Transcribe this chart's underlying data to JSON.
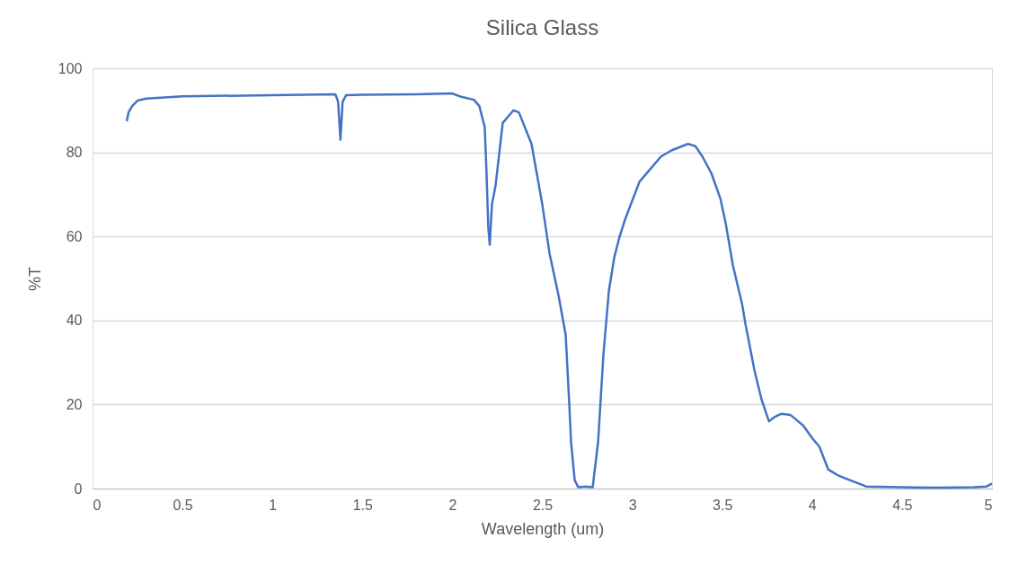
{
  "chart_data": {
    "type": "line",
    "title": "Silica Glass",
    "xlabel": "Wavelength (um)",
    "ylabel": "%T",
    "xlim": [
      0,
      5
    ],
    "xticks": [
      0,
      0.5,
      1,
      1.5,
      2,
      2.5,
      3,
      3.5,
      4,
      4.5,
      5
    ],
    "ylim": [
      0,
      100
    ],
    "yticks": [
      0,
      20,
      40,
      60,
      80,
      100
    ],
    "grid": "y",
    "marker": "none",
    "line_style": "solid",
    "series": [
      {
        "color": "#4472c4",
        "x": [
          0.19,
          0.2,
          0.22,
          0.25,
          0.3,
          0.5,
          1.0,
          1.35,
          1.365,
          1.378,
          1.39,
          1.41,
          1.5,
          1.8,
          2.0,
          2.05,
          2.12,
          2.15,
          2.18,
          2.19,
          2.2,
          2.208,
          2.22,
          2.24,
          2.28,
          2.34,
          2.37,
          2.44,
          2.5,
          2.54,
          2.59,
          2.63,
          2.65,
          2.66,
          2.68,
          2.7,
          2.74,
          2.78,
          2.81,
          2.84,
          2.87,
          2.9,
          2.93,
          2.96,
          3.04,
          3.1,
          3.16,
          3.22,
          3.31,
          3.35,
          3.39,
          3.44,
          3.49,
          3.52,
          3.56,
          3.61,
          3.63,
          3.68,
          3.72,
          3.76,
          3.79,
          3.83,
          3.88,
          3.95,
          4.0,
          4.04,
          4.09,
          4.15,
          4.21,
          4.3,
          4.5,
          4.7,
          4.9,
          4.97,
          5.0
        ],
        "values": [
          87.4,
          89.5,
          91,
          92.3,
          92.8,
          93.3,
          93.6,
          93.8,
          92,
          83,
          92,
          93.6,
          93.7,
          93.8,
          94,
          93.2,
          92.5,
          91,
          86,
          75,
          62,
          58,
          67.6,
          72,
          87,
          90,
          89.5,
          82,
          67.6,
          56,
          46,
          36.6,
          20,
          11,
          2,
          0.3,
          0.5,
          0.3,
          11,
          32,
          47,
          55,
          60,
          64,
          73,
          76,
          79,
          80.5,
          82,
          81.5,
          79,
          75,
          69,
          63,
          53,
          44,
          39,
          28,
          21,
          16,
          17,
          17.8,
          17.5,
          15,
          12,
          10,
          4.5,
          3,
          2,
          0.5,
          0.3,
          0.2,
          0.3,
          0.5,
          1.2
        ]
      }
    ]
  }
}
